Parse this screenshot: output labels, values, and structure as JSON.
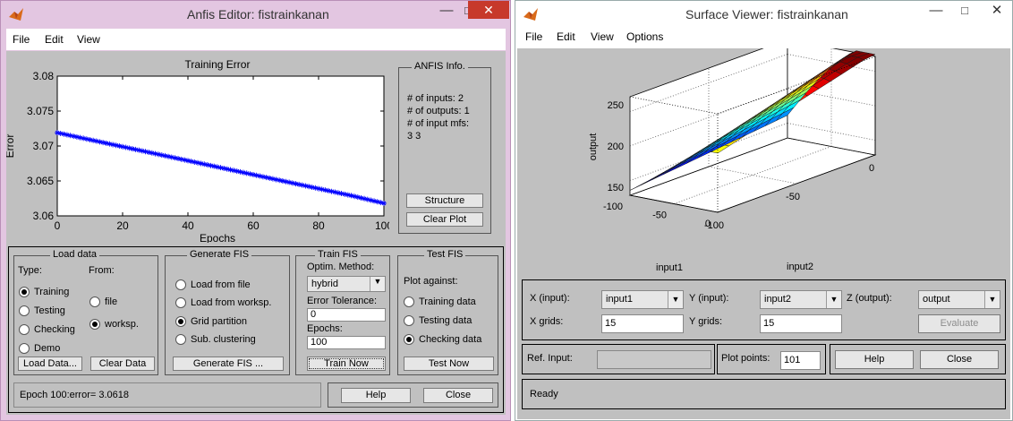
{
  "anfis": {
    "title": "Anfis Editor: fistrainkanan",
    "menu": [
      "File",
      "Edit",
      "View"
    ],
    "plot": {
      "title": "Training Error",
      "ylabel": "Error",
      "xlabel": "Epochs",
      "yticks": [
        "3.08",
        "3.075",
        "3.07",
        "3.065",
        "3.06"
      ],
      "xticks": [
        "0",
        "20",
        "40",
        "60",
        "80",
        "100"
      ]
    },
    "info": {
      "title": "ANFIS Info.",
      "inputs": "# of inputs: 2",
      "outputs": "# of outputs: 1",
      "mfs_label": "# of input mfs:",
      "mfs": "3  3",
      "structure_btn": "Structure",
      "clear_plot_btn": "Clear Plot"
    },
    "load": {
      "title": "Load data",
      "type_label": "Type:",
      "from_label": "From:",
      "types": [
        "Training",
        "Testing",
        "Checking",
        "Demo"
      ],
      "from": [
        "file",
        "worksp."
      ],
      "load_btn": "Load Data...",
      "clear_btn": "Clear Data"
    },
    "generate": {
      "title": "Generate FIS",
      "options": [
        "Load from file",
        "Load from worksp.",
        "Grid partition",
        "Sub. clustering"
      ],
      "btn": "Generate FIS ..."
    },
    "train": {
      "title": "Train FIS",
      "method_label": "Optim. Method:",
      "method": "hybrid",
      "tol_label": "Error Tolerance:",
      "tol": "0",
      "epochs_label": "Epochs:",
      "epochs": "100",
      "btn": "Train Now"
    },
    "test": {
      "title": "Test FIS",
      "plot_label": "Plot against:",
      "options": [
        "Training data",
        "Testing data",
        "Checking data"
      ],
      "btn": "Test Now"
    },
    "status": "Epoch 100:error= 3.0618",
    "help_btn": "Help",
    "close_btn": "Close"
  },
  "surface": {
    "title": "Surface Viewer: fistrainkanan",
    "menu": [
      "File",
      "Edit",
      "View",
      "Options"
    ],
    "plot": {
      "zlabel": "output",
      "xlabel": "input1",
      "ylabel": "input2",
      "zticks": [
        "250",
        "200",
        "150"
      ],
      "xticks": [
        "-100",
        "-50",
        "0"
      ],
      "yticks": [
        "-100",
        "-50",
        "0"
      ]
    },
    "x_label": "X (input):",
    "x_value": "input1",
    "y_label": "Y (input):",
    "y_value": "input2",
    "z_label": "Z (output):",
    "z_value": "output",
    "xgrids_label": "X grids:",
    "xgrids": "15",
    "ygrids_label": "Y grids:",
    "ygrids": "15",
    "evaluate_btn": "Evaluate",
    "ref_label": "Ref. Input:",
    "ref_value": "",
    "plot_points_label": "Plot points:",
    "plot_points": "101",
    "help_btn": "Help",
    "close_btn": "Close",
    "status": "Ready"
  },
  "chart_data": [
    {
      "type": "line",
      "title": "Training Error",
      "xlabel": "Epochs",
      "ylabel": "Error",
      "xlim": [
        0,
        100
      ],
      "ylim": [
        3.06,
        3.08
      ],
      "series": [
        {
          "x": [
            0,
            10,
            20,
            30,
            40,
            50,
            60,
            70,
            80,
            90,
            100
          ],
          "values": [
            3.0719,
            3.0709,
            3.0699,
            3.0689,
            3.0679,
            3.0669,
            3.0659,
            3.0649,
            3.0639,
            3.0629,
            3.0618
          ]
        }
      ]
    },
    {
      "type": "surface",
      "xlabel": "input1",
      "ylabel": "input2",
      "zlabel": "output",
      "xlim": [
        -100,
        0
      ],
      "ylim": [
        -100,
        0
      ],
      "zlim": [
        130,
        260
      ]
    }
  ]
}
